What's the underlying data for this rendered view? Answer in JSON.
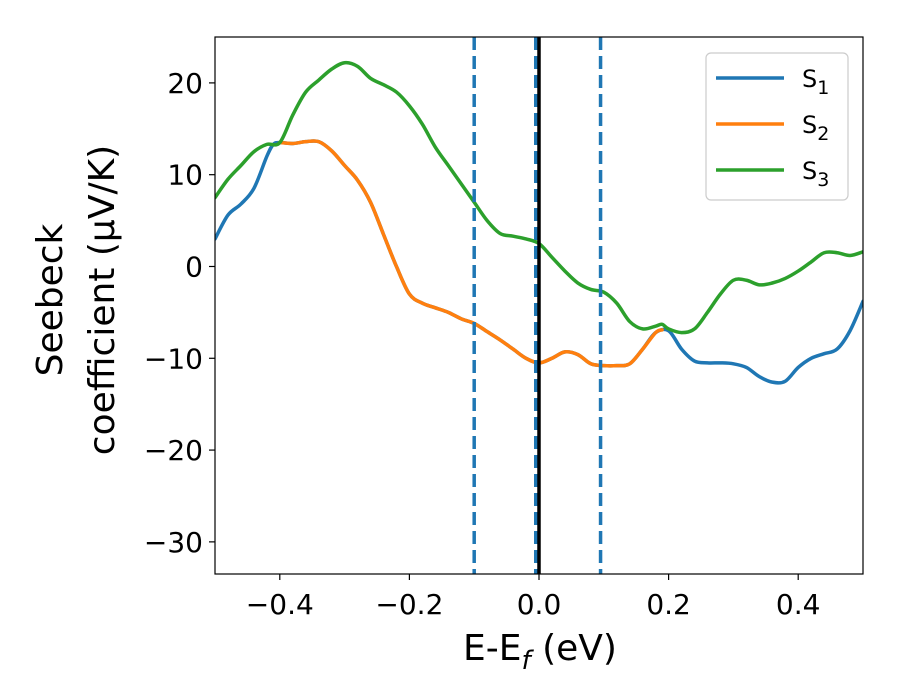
{
  "chart_data": {
    "type": "line",
    "title": "",
    "xlabel": "E-E",
    "xlabel_sub": "f",
    "xlabel_unit": " (eV)",
    "ylabel_line1": "Seebeck",
    "ylabel_line2": "coefficient  (μV/K)",
    "xlim": [
      -0.5,
      0.5
    ],
    "ylim": [
      -33.5,
      25
    ],
    "x_ticks": [
      -0.4,
      -0.2,
      0.0,
      0.2,
      0.4
    ],
    "x_tick_labels": [
      "−0.4",
      "−0.2",
      "0.0",
      "0.2",
      "0.4"
    ],
    "y_ticks": [
      20,
      10,
      0,
      -10,
      -20,
      -30
    ],
    "y_tick_labels": [
      "20",
      "10",
      "0",
      "−10",
      "−20",
      "−30"
    ],
    "legend_placement": "top-right",
    "grid": false,
    "vlines": [
      {
        "x": -0.1,
        "style": "dashed",
        "color": "#1f77b4"
      },
      {
        "x": -0.005,
        "style": "dashed",
        "color": "#1f77b4"
      },
      {
        "x": 0.0,
        "style": "solid",
        "color": "#000000"
      },
      {
        "x": 0.095,
        "style": "dashed",
        "color": "#1f77b4"
      }
    ],
    "series": [
      {
        "name": "S",
        "sub": "1",
        "color": "#1f77b4",
        "points": [
          [
            -0.5,
            3.0
          ],
          [
            -0.48,
            5.6
          ],
          [
            -0.46,
            6.8
          ],
          [
            -0.44,
            8.5
          ],
          [
            -0.42,
            12.0
          ],
          [
            -0.41,
            13.3
          ],
          [
            -0.4,
            13.5
          ],
          [
            -0.38,
            13.4
          ],
          [
            -0.36,
            13.6
          ],
          [
            -0.34,
            13.6
          ],
          [
            -0.32,
            12.6
          ],
          [
            -0.3,
            11.0
          ],
          [
            -0.28,
            9.4
          ],
          [
            -0.26,
            7.0
          ],
          [
            -0.24,
            3.5
          ],
          [
            -0.22,
            0.0
          ],
          [
            -0.2,
            -3.0
          ],
          [
            -0.18,
            -4.0
          ],
          [
            -0.16,
            -4.5
          ],
          [
            -0.14,
            -5.0
          ],
          [
            -0.12,
            -5.7
          ],
          [
            -0.1,
            -6.2
          ],
          [
            -0.08,
            -7.1
          ],
          [
            -0.06,
            -8.0
          ],
          [
            -0.04,
            -9.0
          ],
          [
            -0.02,
            -10.0
          ],
          [
            0.0,
            -10.5
          ],
          [
            0.02,
            -10.0
          ],
          [
            0.04,
            -9.3
          ],
          [
            0.06,
            -9.6
          ],
          [
            0.08,
            -10.6
          ],
          [
            0.1,
            -10.8
          ],
          [
            0.12,
            -10.8
          ],
          [
            0.14,
            -10.6
          ],
          [
            0.16,
            -9.0
          ],
          [
            0.18,
            -7.2
          ],
          [
            0.2,
            -7.0
          ],
          [
            0.22,
            -9.0
          ],
          [
            0.24,
            -10.3
          ],
          [
            0.26,
            -10.5
          ],
          [
            0.28,
            -10.5
          ],
          [
            0.3,
            -10.6
          ],
          [
            0.32,
            -11.0
          ],
          [
            0.34,
            -12.0
          ],
          [
            0.36,
            -12.6
          ],
          [
            0.38,
            -12.5
          ],
          [
            0.4,
            -11.0
          ],
          [
            0.42,
            -10.0
          ],
          [
            0.44,
            -9.5
          ],
          [
            0.46,
            -9.0
          ],
          [
            0.48,
            -7.0
          ],
          [
            0.5,
            -3.8
          ]
        ]
      },
      {
        "name": "S",
        "sub": "2",
        "color": "#ff7f0e",
        "points": [
          [
            -0.4,
            13.5
          ],
          [
            -0.38,
            13.4
          ],
          [
            -0.36,
            13.6
          ],
          [
            -0.34,
            13.6
          ],
          [
            -0.32,
            12.6
          ],
          [
            -0.3,
            11.0
          ],
          [
            -0.28,
            9.4
          ],
          [
            -0.26,
            7.0
          ],
          [
            -0.24,
            3.5
          ],
          [
            -0.22,
            0.0
          ],
          [
            -0.2,
            -3.0
          ],
          [
            -0.18,
            -4.0
          ],
          [
            -0.16,
            -4.5
          ],
          [
            -0.14,
            -5.0
          ],
          [
            -0.12,
            -5.7
          ],
          [
            -0.1,
            -6.2
          ],
          [
            -0.08,
            -7.1
          ],
          [
            -0.06,
            -8.0
          ],
          [
            -0.04,
            -9.0
          ],
          [
            -0.02,
            -10.0
          ],
          [
            0.0,
            -10.5
          ],
          [
            0.02,
            -10.0
          ],
          [
            0.04,
            -9.3
          ],
          [
            0.06,
            -9.6
          ],
          [
            0.08,
            -10.6
          ],
          [
            0.1,
            -10.8
          ],
          [
            0.12,
            -10.8
          ],
          [
            0.14,
            -10.6
          ],
          [
            0.16,
            -9.0
          ],
          [
            0.18,
            -7.2
          ],
          [
            0.19,
            -6.9
          ]
        ]
      },
      {
        "name": "S",
        "sub": "3",
        "color": "#2ca02c",
        "points": [
          [
            -0.5,
            7.5
          ],
          [
            -0.48,
            9.5
          ],
          [
            -0.46,
            11.0
          ],
          [
            -0.44,
            12.5
          ],
          [
            -0.42,
            13.3
          ],
          [
            -0.4,
            13.5
          ],
          [
            -0.38,
            16.5
          ],
          [
            -0.36,
            19.0
          ],
          [
            -0.34,
            20.3
          ],
          [
            -0.32,
            21.5
          ],
          [
            -0.3,
            22.2
          ],
          [
            -0.28,
            21.8
          ],
          [
            -0.26,
            20.5
          ],
          [
            -0.24,
            19.8
          ],
          [
            -0.22,
            19.0
          ],
          [
            -0.2,
            17.5
          ],
          [
            -0.18,
            15.5
          ],
          [
            -0.16,
            13.0
          ],
          [
            -0.14,
            11.0
          ],
          [
            -0.12,
            9.0
          ],
          [
            -0.1,
            7.0
          ],
          [
            -0.08,
            5.0
          ],
          [
            -0.06,
            3.6
          ],
          [
            -0.04,
            3.3
          ],
          [
            -0.02,
            3.0
          ],
          [
            0.0,
            2.5
          ],
          [
            0.02,
            1.0
          ],
          [
            0.04,
            -0.5
          ],
          [
            0.06,
            -1.8
          ],
          [
            0.08,
            -2.5
          ],
          [
            0.1,
            -2.8
          ],
          [
            0.12,
            -4.0
          ],
          [
            0.14,
            -6.0
          ],
          [
            0.16,
            -6.8
          ],
          [
            0.18,
            -6.5
          ],
          [
            0.19,
            -6.3
          ],
          [
            0.2,
            -6.8
          ],
          [
            0.22,
            -7.2
          ],
          [
            0.24,
            -6.8
          ],
          [
            0.26,
            -5.0
          ],
          [
            0.28,
            -3.0
          ],
          [
            0.3,
            -1.5
          ],
          [
            0.32,
            -1.5
          ],
          [
            0.34,
            -2.0
          ],
          [
            0.36,
            -1.8
          ],
          [
            0.38,
            -1.3
          ],
          [
            0.4,
            -0.5
          ],
          [
            0.42,
            0.5
          ],
          [
            0.44,
            1.5
          ],
          [
            0.46,
            1.5
          ],
          [
            0.48,
            1.2
          ],
          [
            0.5,
            1.6
          ]
        ]
      }
    ]
  }
}
